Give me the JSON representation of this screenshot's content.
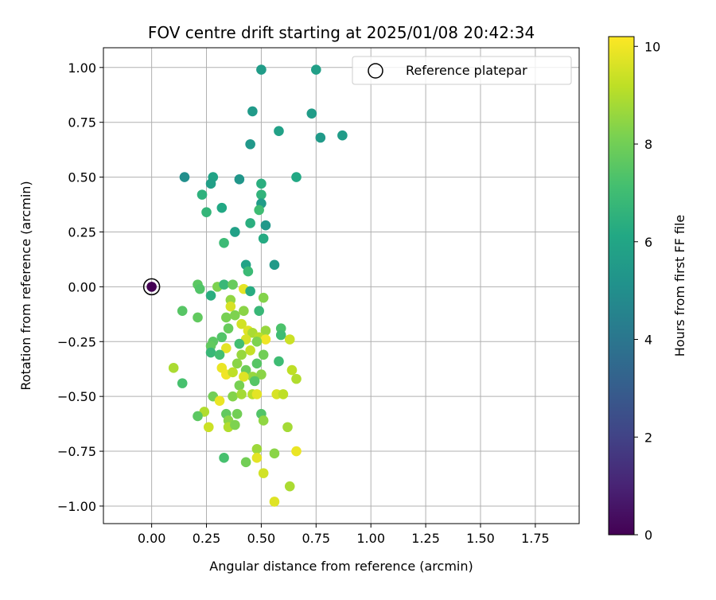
{
  "chart_data": {
    "type": "scatter",
    "title": "FOV centre drift starting at 2025/01/08 20:42:34",
    "xlabel": "Angular distance from reference (arcmin)",
    "ylabel": "Rotation from reference (arcmin)",
    "xlim": [
      -0.22,
      1.95
    ],
    "ylim": [
      -1.08,
      1.09
    ],
    "xticks": [
      0.0,
      0.25,
      0.5,
      0.75,
      1.0,
      1.25,
      1.5,
      1.75
    ],
    "xtick_labels": [
      "0.00",
      "0.25",
      "0.50",
      "0.75",
      "1.00",
      "1.25",
      "1.50",
      "1.75"
    ],
    "yticks": [
      1.0,
      0.75,
      0.5,
      0.25,
      0.0,
      -0.25,
      -0.5,
      -0.75,
      -1.0
    ],
    "ytick_labels": [
      "1.00",
      "0.75",
      "0.50",
      "0.25",
      "0.00",
      "−0.25",
      "−0.50",
      "−0.75",
      "−1.00"
    ],
    "grid": true,
    "legend": {
      "placement": "top-right",
      "entries": [
        "Reference platepar"
      ]
    },
    "colorbar": {
      "label": "Hours from first FF file",
      "range": [
        0,
        10.2
      ],
      "ticks": [
        0,
        2,
        4,
        6,
        8,
        10
      ],
      "tick_labels": [
        "0",
        "2",
        "4",
        "6",
        "8",
        "10"
      ],
      "colormap": "viridis"
    },
    "reference_point": {
      "x": 0.0,
      "y": 0.0,
      "hours": 0.0
    },
    "points": [
      {
        "x": 0.5,
        "y": 0.99,
        "h": 5.6
      },
      {
        "x": 0.75,
        "y": 0.99,
        "h": 5.7
      },
      {
        "x": 0.46,
        "y": 0.8,
        "h": 5.5
      },
      {
        "x": 0.73,
        "y": 0.79,
        "h": 5.6
      },
      {
        "x": 0.58,
        "y": 0.71,
        "h": 5.8
      },
      {
        "x": 0.77,
        "y": 0.68,
        "h": 5.5
      },
      {
        "x": 0.87,
        "y": 0.69,
        "h": 5.6
      },
      {
        "x": 0.45,
        "y": 0.65,
        "h": 5.4
      },
      {
        "x": 0.15,
        "y": 0.5,
        "h": 5.0
      },
      {
        "x": 0.28,
        "y": 0.5,
        "h": 5.9
      },
      {
        "x": 0.4,
        "y": 0.49,
        "h": 5.3
      },
      {
        "x": 0.5,
        "y": 0.47,
        "h": 6.4
      },
      {
        "x": 0.66,
        "y": 0.5,
        "h": 6.1
      },
      {
        "x": 0.27,
        "y": 0.47,
        "h": 5.7
      },
      {
        "x": 0.23,
        "y": 0.42,
        "h": 6.5
      },
      {
        "x": 0.5,
        "y": 0.42,
        "h": 6.6
      },
      {
        "x": 0.5,
        "y": 0.38,
        "h": 5.6
      },
      {
        "x": 0.32,
        "y": 0.36,
        "h": 6.1
      },
      {
        "x": 0.49,
        "y": 0.35,
        "h": 7.0
      },
      {
        "x": 0.25,
        "y": 0.34,
        "h": 6.7
      },
      {
        "x": 0.45,
        "y": 0.29,
        "h": 6.4
      },
      {
        "x": 0.52,
        "y": 0.28,
        "h": 5.4
      },
      {
        "x": 0.38,
        "y": 0.25,
        "h": 5.8
      },
      {
        "x": 0.51,
        "y": 0.22,
        "h": 6.2
      },
      {
        "x": 0.33,
        "y": 0.2,
        "h": 6.9
      },
      {
        "x": 0.43,
        "y": 0.1,
        "h": 5.9
      },
      {
        "x": 0.56,
        "y": 0.1,
        "h": 5.5
      },
      {
        "x": 0.44,
        "y": 0.07,
        "h": 6.9
      },
      {
        "x": 0.21,
        "y": 0.01,
        "h": 7.6
      },
      {
        "x": 0.22,
        "y": -0.01,
        "h": 7.4
      },
      {
        "x": 0.3,
        "y": 0.0,
        "h": 8.2
      },
      {
        "x": 0.33,
        "y": 0.01,
        "h": 6.8
      },
      {
        "x": 0.37,
        "y": 0.01,
        "h": 7.8
      },
      {
        "x": 0.42,
        "y": -0.01,
        "h": 9.8
      },
      {
        "x": 0.27,
        "y": -0.04,
        "h": 6.4
      },
      {
        "x": 0.45,
        "y": -0.02,
        "h": 6.3
      },
      {
        "x": 0.51,
        "y": -0.05,
        "h": 8.3
      },
      {
        "x": 0.36,
        "y": -0.06,
        "h": 8.5
      },
      {
        "x": 0.36,
        "y": -0.09,
        "h": 9.6
      },
      {
        "x": 0.14,
        "y": -0.11,
        "h": 7.5
      },
      {
        "x": 0.42,
        "y": -0.11,
        "h": 8.4
      },
      {
        "x": 0.49,
        "y": -0.11,
        "h": 6.8
      },
      {
        "x": 0.34,
        "y": -0.14,
        "h": 8.1
      },
      {
        "x": 0.38,
        "y": -0.13,
        "h": 8.2
      },
      {
        "x": 0.21,
        "y": -0.14,
        "h": 7.7
      },
      {
        "x": 0.41,
        "y": -0.17,
        "h": 9.5
      },
      {
        "x": 0.35,
        "y": -0.19,
        "h": 7.8
      },
      {
        "x": 0.44,
        "y": -0.2,
        "h": 9.7
      },
      {
        "x": 0.46,
        "y": -0.21,
        "h": 8.9
      },
      {
        "x": 0.52,
        "y": -0.2,
        "h": 8.6
      },
      {
        "x": 0.59,
        "y": -0.19,
        "h": 7.3
      },
      {
        "x": 0.59,
        "y": -0.22,
        "h": 7.0
      },
      {
        "x": 0.32,
        "y": -0.23,
        "h": 7.4
      },
      {
        "x": 0.28,
        "y": -0.25,
        "h": 7.6
      },
      {
        "x": 0.43,
        "y": -0.24,
        "h": 9.6
      },
      {
        "x": 0.49,
        "y": -0.23,
        "h": 9.1
      },
      {
        "x": 0.52,
        "y": -0.24,
        "h": 10.0
      },
      {
        "x": 0.63,
        "y": -0.24,
        "h": 9.4
      },
      {
        "x": 0.27,
        "y": -0.27,
        "h": 7.7
      },
      {
        "x": 0.34,
        "y": -0.28,
        "h": 9.8
      },
      {
        "x": 0.4,
        "y": -0.26,
        "h": 7.1
      },
      {
        "x": 0.48,
        "y": -0.25,
        "h": 8.2
      },
      {
        "x": 0.45,
        "y": -0.29,
        "h": 9.3
      },
      {
        "x": 0.27,
        "y": -0.3,
        "h": 6.8
      },
      {
        "x": 0.31,
        "y": -0.31,
        "h": 7.1
      },
      {
        "x": 0.41,
        "y": -0.31,
        "h": 8.6
      },
      {
        "x": 0.51,
        "y": -0.31,
        "h": 8.0
      },
      {
        "x": 0.48,
        "y": -0.35,
        "h": 7.5
      },
      {
        "x": 0.39,
        "y": -0.35,
        "h": 8.4
      },
      {
        "x": 0.58,
        "y": -0.34,
        "h": 7.0
      },
      {
        "x": 0.1,
        "y": -0.37,
        "h": 8.9
      },
      {
        "x": 0.32,
        "y": -0.37,
        "h": 9.9
      },
      {
        "x": 0.34,
        "y": -0.4,
        "h": 10.0
      },
      {
        "x": 0.37,
        "y": -0.39,
        "h": 9.2
      },
      {
        "x": 0.43,
        "y": -0.38,
        "h": 7.9
      },
      {
        "x": 0.46,
        "y": -0.41,
        "h": 8.6
      },
      {
        "x": 0.5,
        "y": -0.4,
        "h": 8.4
      },
      {
        "x": 0.42,
        "y": -0.41,
        "h": 9.7
      },
      {
        "x": 0.64,
        "y": -0.38,
        "h": 9.2
      },
      {
        "x": 0.66,
        "y": -0.42,
        "h": 9.0
      },
      {
        "x": 0.14,
        "y": -0.44,
        "h": 7.2
      },
      {
        "x": 0.47,
        "y": -0.43,
        "h": 7.5
      },
      {
        "x": 0.4,
        "y": -0.45,
        "h": 8.1
      },
      {
        "x": 0.28,
        "y": -0.5,
        "h": 8.0
      },
      {
        "x": 0.37,
        "y": -0.5,
        "h": 8.3
      },
      {
        "x": 0.41,
        "y": -0.49,
        "h": 8.8
      },
      {
        "x": 0.46,
        "y": -0.49,
        "h": 9.1
      },
      {
        "x": 0.48,
        "y": -0.49,
        "h": 9.8
      },
      {
        "x": 0.57,
        "y": -0.49,
        "h": 9.6
      },
      {
        "x": 0.6,
        "y": -0.49,
        "h": 9.2
      },
      {
        "x": 0.31,
        "y": -0.52,
        "h": 9.9
      },
      {
        "x": 0.24,
        "y": -0.57,
        "h": 9.0
      },
      {
        "x": 0.34,
        "y": -0.58,
        "h": 7.7
      },
      {
        "x": 0.39,
        "y": -0.58,
        "h": 8.0
      },
      {
        "x": 0.5,
        "y": -0.58,
        "h": 7.4
      },
      {
        "x": 0.21,
        "y": -0.59,
        "h": 7.6
      },
      {
        "x": 0.35,
        "y": -0.61,
        "h": 8.4
      },
      {
        "x": 0.51,
        "y": -0.61,
        "h": 8.5
      },
      {
        "x": 0.26,
        "y": -0.64,
        "h": 9.4
      },
      {
        "x": 0.35,
        "y": -0.64,
        "h": 9.0
      },
      {
        "x": 0.38,
        "y": -0.63,
        "h": 8.2
      },
      {
        "x": 0.62,
        "y": -0.64,
        "h": 8.8
      },
      {
        "x": 0.48,
        "y": -0.74,
        "h": 8.7
      },
      {
        "x": 0.56,
        "y": -0.76,
        "h": 8.4
      },
      {
        "x": 0.66,
        "y": -0.75,
        "h": 9.9
      },
      {
        "x": 0.33,
        "y": -0.78,
        "h": 7.2
      },
      {
        "x": 0.48,
        "y": -0.78,
        "h": 9.8
      },
      {
        "x": 0.43,
        "y": -0.8,
        "h": 8.0
      },
      {
        "x": 0.51,
        "y": -0.85,
        "h": 9.5
      },
      {
        "x": 0.63,
        "y": -0.91,
        "h": 8.9
      },
      {
        "x": 0.56,
        "y": -0.98,
        "h": 9.7
      }
    ]
  }
}
